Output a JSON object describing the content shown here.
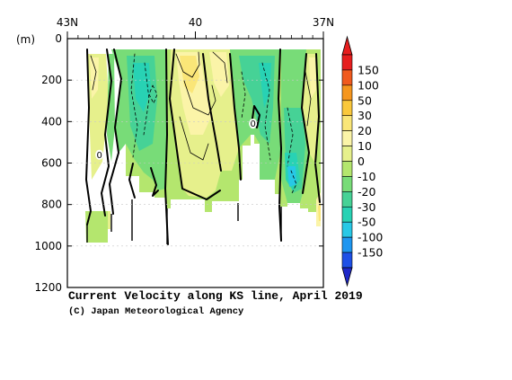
{
  "chart_data": {
    "type": "heatmap",
    "title": "Current Velocity along KS line, April 2019",
    "credit": "(C) Japan Meteorological Agency",
    "y_unit_label": "(m)",
    "x_ticks": [
      {
        "lat": 43,
        "label": "43N"
      },
      {
        "lat": 40,
        "label": "40"
      },
      {
        "lat": 37,
        "label": "37N"
      }
    ],
    "x_range": [
      43,
      37
    ],
    "y_ticks": [
      {
        "depth": 0,
        "label": "0"
      },
      {
        "depth": 200,
        "label": "200"
      },
      {
        "depth": 400,
        "label": "400"
      },
      {
        "depth": 600,
        "label": "600"
      },
      {
        "depth": 800,
        "label": "800"
      },
      {
        "depth": 1000,
        "label": "1000"
      },
      {
        "depth": 1200,
        "label": "1200"
      }
    ],
    "y_range": [
      0,
      1200
    ],
    "zero_contour_labels": [
      {
        "text": "0",
        "lat": 42.25,
        "depth": 560
      },
      {
        "text": "0",
        "lat": 38.65,
        "depth": 410
      }
    ],
    "colorbar": {
      "levels": [
        {
          "label": "150",
          "color": "#f05a1e"
        },
        {
          "label": "100",
          "color": "#f5961e"
        },
        {
          "label": "50",
          "color": "#fac83c"
        },
        {
          "label": "30",
          "color": "#fae678"
        },
        {
          "label": "20",
          "color": "#fbf4a8"
        },
        {
          "label": "10",
          "color": "#e6f08c"
        },
        {
          "label": "0",
          "color": "#b4e66e"
        },
        {
          "label": "-10",
          "color": "#78dc78"
        },
        {
          "label": "-20",
          "color": "#46d296"
        },
        {
          "label": "-30",
          "color": "#28d2b4"
        },
        {
          "label": "-50",
          "color": "#28c8e6"
        },
        {
          "label": "-100",
          "color": "#1e96f0"
        },
        {
          "label": "-150",
          "color": "#1e50e6"
        }
      ],
      "top_cap_color": "#e61e1e",
      "bottom_cap_color": "#1e28c8"
    }
  }
}
